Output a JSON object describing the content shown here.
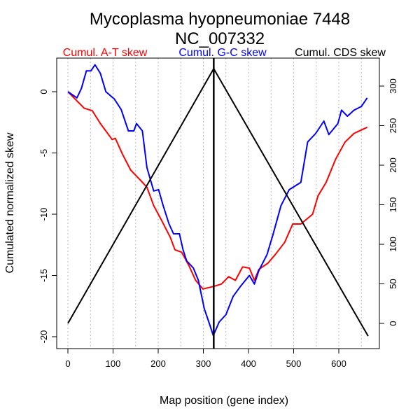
{
  "chart_data": {
    "type": "line",
    "title": "Mycoplasma hyopneumoniae 7448",
    "subtitle": "NC_007332",
    "xlabel": "Map position (gene index)",
    "ylabel": "Cumulated normalized skew",
    "xlim": [
      -30,
      690
    ],
    "ylim_left": [
      -21.3,
      2.8
    ],
    "ylim_right": [
      -32,
      336
    ],
    "x_ticks": [
      0,
      100,
      200,
      300,
      400,
      500,
      600
    ],
    "y_ticks_left": [
      0,
      -5,
      -10,
      -15,
      -20
    ],
    "y_ticks_right": [
      0,
      50,
      100,
      150,
      200,
      250,
      300
    ],
    "grid": {
      "vertical_dotted_every": 50
    },
    "origin_marker_x": 323,
    "legend": [
      {
        "label": "Cumul. A-T skew",
        "color": "#ff0000"
      },
      {
        "label": "Cumul. G-C skew",
        "color": "#0000ff"
      },
      {
        "label": "Cumul. CDS skew",
        "color": "#000000"
      }
    ],
    "series": [
      {
        "name": "Cumul. A-T skew",
        "axis": "left",
        "color": "#ff0000",
        "x": [
          0,
          36,
          54,
          72,
          98,
          105,
          121,
          139,
          160,
          175,
          190,
          206,
          227,
          237,
          252,
          268,
          283,
          299,
          322,
          340,
          356,
          371,
          387,
          402,
          413,
          423,
          443,
          459,
          480,
          498,
          516,
          542,
          554,
          572,
          593,
          614,
          634,
          663
        ],
        "y": [
          0,
          -1.35,
          -1.55,
          -2.6,
          -3.9,
          -3.8,
          -5.1,
          -6.4,
          -7.2,
          -7.8,
          -9.3,
          -10.4,
          -11.9,
          -12.9,
          -13.1,
          -14.2,
          -15.4,
          -16.1,
          -15.9,
          -15.7,
          -15.1,
          -15.4,
          -14.3,
          -14.4,
          -15.4,
          -14.5,
          -14.0,
          -13.3,
          -12.3,
          -10.8,
          -10.8,
          -10.0,
          -8.5,
          -7.4,
          -5.5,
          -4.1,
          -3.4,
          -2.9
        ]
      },
      {
        "name": "Cumul. G-C skew",
        "axis": "left",
        "color": "#0000ff",
        "x": [
          0,
          20,
          30,
          41,
          51,
          60,
          72,
          84,
          103,
          118,
          134,
          146,
          152,
          165,
          175,
          190,
          201,
          211,
          224,
          234,
          247,
          255,
          263,
          278,
          289,
          302,
          314,
          322,
          335,
          350,
          366,
          382,
          402,
          413,
          423,
          441,
          454,
          472,
          490,
          516,
          531,
          549,
          567,
          578,
          598,
          606,
          619,
          634,
          650,
          663
        ],
        "y": [
          0,
          -0.5,
          0.27,
          1.7,
          1.7,
          2.2,
          1.5,
          0,
          -0.6,
          -1.45,
          -3.2,
          -3.2,
          -2.6,
          -3.2,
          -6.2,
          -8.1,
          -8.0,
          -9.3,
          -10.8,
          -11.6,
          -11.6,
          -12.9,
          -13.8,
          -14.4,
          -15.4,
          -17.7,
          -19.0,
          -19.9,
          -18.8,
          -18.2,
          -16.7,
          -15.9,
          -15.0,
          -15.7,
          -14.6,
          -13.3,
          -11.7,
          -9.3,
          -8.0,
          -7.4,
          -4.1,
          -3.4,
          -2.4,
          -3.5,
          -2.6,
          -1.5,
          -2.0,
          -1.5,
          -1.2,
          -0.5
        ]
      },
      {
        "name": "Cumul. CDS skew",
        "axis": "right",
        "color": "#000000",
        "x": [
          0,
          323,
          665
        ],
        "y": [
          0,
          322,
          -16
        ]
      }
    ]
  }
}
